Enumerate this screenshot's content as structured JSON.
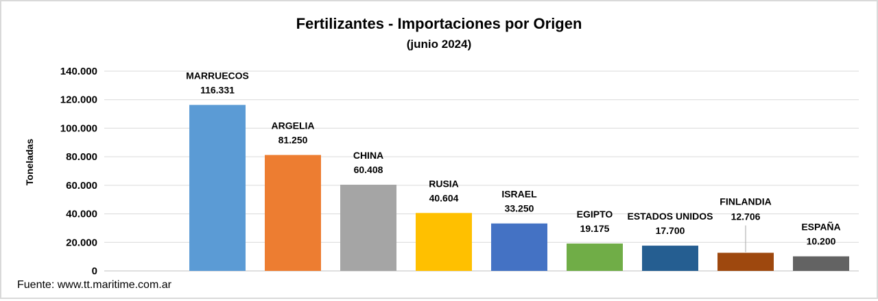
{
  "chart_data": {
    "type": "bar",
    "title": "Fertilizantes - Importaciones por Origen",
    "subtitle": "(junio 2024)",
    "ylabel": "Toneladas",
    "xlabel": "",
    "ylim": [
      0,
      140000
    ],
    "yticks": [
      0,
      20000,
      40000,
      60000,
      80000,
      100000,
      120000,
      140000
    ],
    "ytick_labels": [
      "0",
      "20.000",
      "40.000",
      "60.000",
      "80.000",
      "100.000",
      "120.000",
      "140.000"
    ],
    "grid": true,
    "legend": "none",
    "categories": [
      "",
      "MARRUECOS",
      "ARGELIA",
      "CHINA",
      "RUSIA",
      "ISRAEL",
      "EGIPTO",
      "ESTADOS UNIDOS",
      "FINLANDIA",
      "ESPAÑA"
    ],
    "values": [
      0,
      116331,
      81250,
      60408,
      40604,
      33250,
      19175,
      17700,
      12706,
      10200
    ],
    "value_labels": [
      "",
      "116.331",
      "81.250",
      "60.408",
      "40.604",
      "33.250",
      "19.175",
      "17.700",
      "12.706",
      "10.200"
    ],
    "colors": [
      "#5b9bd5",
      "#5b9bd5",
      "#ed7d31",
      "#a5a5a5",
      "#ffc000",
      "#4472c4",
      "#70ad47",
      "#255e91",
      "#9e480e",
      "#636363"
    ],
    "source": "Fuente: www.tt.maritime.com.ar"
  }
}
